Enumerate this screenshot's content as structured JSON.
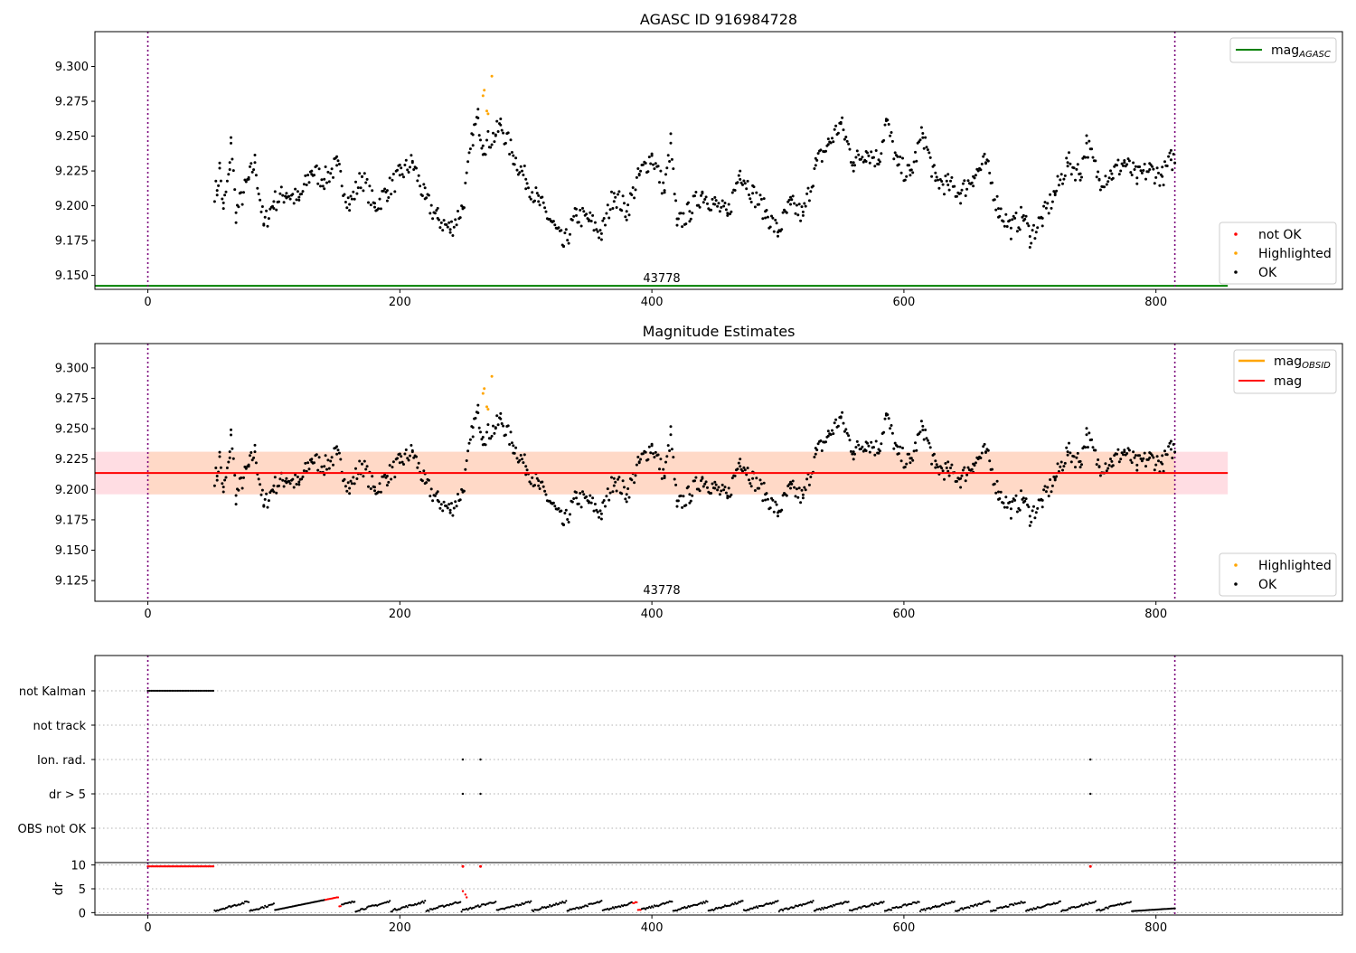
{
  "figure": {
    "panel1_title": "AGASC ID 916984728",
    "panel2_title": "Magnitude Estimates",
    "obsid_label": "43778"
  },
  "colors": {
    "ok": "#000000",
    "highlighted": "#ffa500",
    "not_ok": "#ff0000",
    "mag_agasc": "#008000",
    "mag_obsid": "#ffa500",
    "mag": "#ff0000",
    "band_outer": "#ffdde3",
    "band_inner": "#ffd9c7",
    "obs_boundary": "#7b007b"
  },
  "legends": {
    "panel1_line": "mag",
    "panel1_line_sub": "AGASC",
    "panel1_points": [
      "not OK",
      "Highlighted",
      "OK"
    ],
    "panel2_lines": [
      {
        "label": "mag",
        "sub": "OBSID"
      },
      {
        "label": "mag",
        "sub": ""
      }
    ],
    "panel2_points": [
      "Highlighted",
      "OK"
    ]
  },
  "chart_data": [
    {
      "type": "scatter",
      "title": "AGASC ID 916984728",
      "xlabel": "",
      "ylabel": "",
      "xlim": [
        -42,
        948
      ],
      "ylim": [
        9.14,
        9.325
      ],
      "xticks": [
        0,
        200,
        400,
        600,
        800
      ],
      "yticks": [
        9.15,
        9.175,
        9.2,
        9.225,
        9.25,
        9.275,
        9.3
      ],
      "ytick_labels": [
        "9.150",
        "9.175",
        "9.200",
        "9.225",
        "9.250",
        "9.275",
        "9.300"
      ],
      "hlines": [
        {
          "name": "mag_AGASC",
          "y": 9.1425,
          "x_range": [
            -42,
            857
          ]
        }
      ],
      "vlines": [
        0,
        815
      ],
      "annotation": {
        "text": "43778",
        "x": 410,
        "y": 9.1455
      },
      "series": [
        {
          "name": "OK",
          "x_range": [
            52,
            815
          ],
          "y_range": [
            9.17,
            9.262
          ],
          "note": "~760 points, samples listed",
          "points": [
            [
              55,
              9.211
            ],
            [
              57,
              9.227
            ],
            [
              60,
              9.198
            ],
            [
              65,
              9.226
            ],
            [
              66,
              9.249
            ],
            [
              70,
              9.195
            ],
            [
              80,
              9.219
            ],
            [
              85,
              9.231
            ],
            [
              92,
              9.186
            ],
            [
              100,
              9.203
            ],
            [
              110,
              9.209
            ],
            [
              120,
              9.204
            ],
            [
              130,
              9.225
            ],
            [
              140,
              9.219
            ],
            [
              150,
              9.229
            ],
            [
              160,
              9.201
            ],
            [
              170,
              9.221
            ],
            [
              180,
              9.199
            ],
            [
              190,
              9.211
            ],
            [
              200,
              9.222
            ],
            [
              210,
              9.231
            ],
            [
              220,
              9.205
            ],
            [
              230,
              9.191
            ],
            [
              240,
              9.183
            ],
            [
              250,
              9.199
            ],
            [
              258,
              9.251
            ],
            [
              262,
              9.263
            ],
            [
              266,
              9.243
            ],
            [
              276,
              9.251
            ],
            [
              280,
              9.258
            ],
            [
              290,
              9.236
            ],
            [
              300,
              9.219
            ],
            [
              310,
              9.203
            ],
            [
              320,
              9.189
            ],
            [
              330,
              9.171
            ],
            [
              340,
              9.193
            ],
            [
              350,
              9.19
            ],
            [
              360,
              9.18
            ],
            [
              370,
              9.209
            ],
            [
              380,
              9.196
            ],
            [
              390,
              9.222
            ],
            [
              400,
              9.236
            ],
            [
              410,
              9.211
            ],
            [
              415,
              9.245
            ],
            [
              420,
              9.186
            ],
            [
              430,
              9.196
            ],
            [
              440,
              9.209
            ],
            [
              450,
              9.201
            ],
            [
              460,
              9.193
            ],
            [
              470,
              9.225
            ],
            [
              480,
              9.209
            ],
            [
              490,
              9.196
            ],
            [
              500,
              9.181
            ],
            [
              510,
              9.201
            ],
            [
              520,
              9.193
            ],
            [
              530,
              9.229
            ],
            [
              540,
              9.244
            ],
            [
              550,
              9.259
            ],
            [
              560,
              9.231
            ],
            [
              570,
              9.239
            ],
            [
              580,
              9.233
            ],
            [
              586,
              9.261
            ],
            [
              595,
              9.229
            ],
            [
              605,
              9.222
            ],
            [
              615,
              9.252
            ],
            [
              625,
              9.218
            ],
            [
              635,
              9.215
            ],
            [
              645,
              9.209
            ],
            [
              655,
              9.221
            ],
            [
              665,
              9.231
            ],
            [
              675,
              9.198
            ],
            [
              685,
              9.184
            ],
            [
              695,
              9.193
            ],
            [
              700,
              9.178
            ],
            [
              710,
              9.191
            ],
            [
              720,
              9.209
            ],
            [
              730,
              9.231
            ],
            [
              740,
              9.223
            ],
            [
              745,
              9.245
            ],
            [
              755,
              9.219
            ],
            [
              765,
              9.223
            ],
            [
              775,
              9.231
            ],
            [
              785,
              9.22
            ],
            [
              795,
              9.226
            ],
            [
              805,
              9.221
            ],
            [
              812,
              9.233
            ]
          ]
        },
        {
          "name": "Highlighted",
          "points": [
            [
              266,
              9.279
            ],
            [
              267,
              9.283
            ],
            [
              269,
              9.268
            ],
            [
              270,
              9.266
            ],
            [
              273,
              9.293
            ]
          ]
        },
        {
          "name": "not OK",
          "points": []
        }
      ]
    },
    {
      "type": "scatter",
      "title": "Magnitude Estimates",
      "xlabel": "",
      "ylabel": "",
      "xlim": [
        -42,
        948
      ],
      "ylim": [
        9.108,
        9.32
      ],
      "xticks": [
        0,
        200,
        400,
        600,
        800
      ],
      "yticks": [
        9.125,
        9.15,
        9.175,
        9.2,
        9.225,
        9.25,
        9.275,
        9.3
      ],
      "ytick_labels": [
        "9.125",
        "9.150",
        "9.175",
        "9.200",
        "9.225",
        "9.250",
        "9.275",
        "9.300"
      ],
      "hlines": [
        {
          "name": "mag",
          "y": 9.2135,
          "x_range": [
            -42,
            857
          ]
        }
      ],
      "bands": [
        {
          "y_range": [
            9.196,
            9.231
          ],
          "x_range": [
            -42,
            857
          ]
        }
      ],
      "vlines": [
        0,
        815
      ],
      "annotation": {
        "text": "43778",
        "x": 410,
        "y": 9.1145
      },
      "series": [
        {
          "name": "OK",
          "note": "same points as panel 1"
        },
        {
          "name": "Highlighted",
          "points": [
            [
              266,
              9.279
            ],
            [
              267,
              9.283
            ],
            [
              269,
              9.268
            ],
            [
              270,
              9.266
            ],
            [
              273,
              9.293
            ]
          ]
        }
      ]
    },
    {
      "type": "scatter",
      "title": "",
      "xlim": [
        -42,
        948
      ],
      "xticks": [
        0,
        200,
        400,
        600,
        800
      ],
      "categories": [
        "not Kalman",
        "not track",
        "Ion. rad.",
        "dr > 5",
        "OBS not OK"
      ],
      "flags": {
        "not Kalman": {
          "x_range": [
            0,
            52
          ]
        },
        "not track": {
          "points": []
        },
        "Ion. rad.": {
          "points": [
            250,
            264,
            748
          ]
        },
        "dr > 5": {
          "points": [
            250,
            264,
            748
          ]
        },
        "OBS not OK": {
          "points": []
        }
      }
    },
    {
      "type": "scatter",
      "title": "",
      "xlabel": "",
      "ylabel": "dr",
      "xlim": [
        -42,
        948
      ],
      "ylim": [
        -0.5,
        10.5
      ],
      "xticks": [
        0,
        200,
        400,
        600,
        800
      ],
      "yticks": [
        0,
        5,
        10
      ],
      "ytick_labels": [
        "0",
        "5",
        "10"
      ],
      "series": [
        {
          "name": "dr (OK)",
          "note": "black points ~0-3 from x=52 to 815"
        },
        {
          "name": "dr (not OK)",
          "note": "red points at 10 for x=0..52, 250, 264, 748; red at 2.5-4.5 near x=150, 250, 390"
        }
      ]
    }
  ]
}
